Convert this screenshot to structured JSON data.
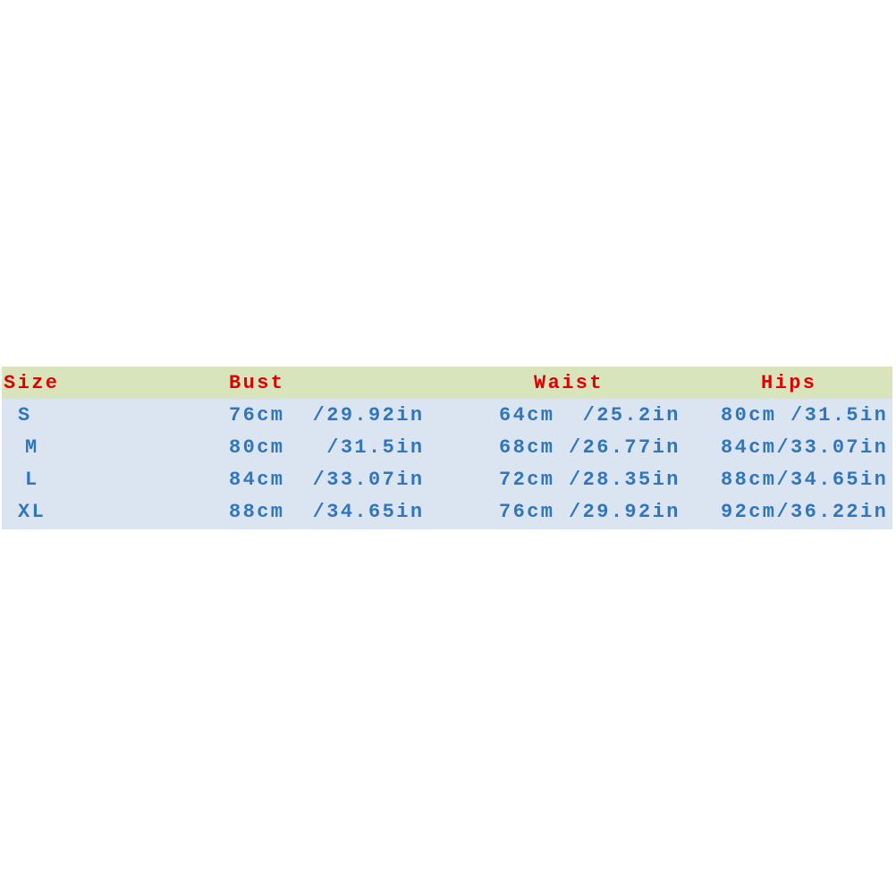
{
  "table": {
    "header": [
      "Size",
      "Bust",
      "Waist",
      "Hips"
    ],
    "rows": [
      [
        "S",
        "76cm  /29.92in",
        "64cm  /25.2in",
        "80cm /31.5in"
      ],
      [
        "M",
        "80cm   /31.5in",
        "68cm /26.77in",
        "84cm/33.07in"
      ],
      [
        "L",
        "84cm  /33.07in",
        "72cm /28.35in",
        "88cm/34.65in"
      ],
      [
        "XL",
        "88cm  /34.65in",
        "76cm /29.92in",
        "92cm/36.22in"
      ]
    ]
  }
}
